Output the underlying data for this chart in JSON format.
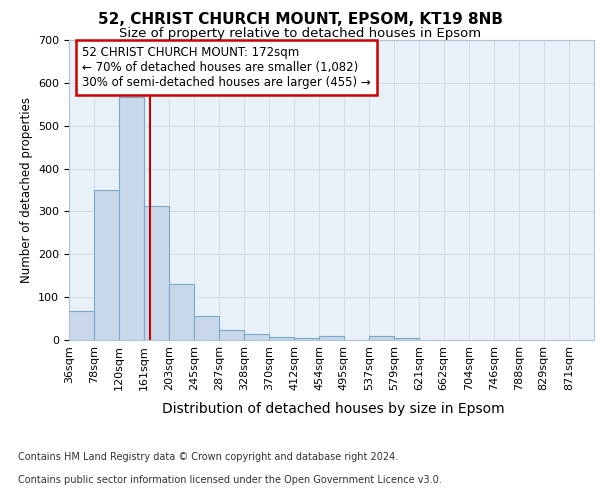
{
  "title1": "52, CHRIST CHURCH MOUNT, EPSOM, KT19 8NB",
  "title2": "Size of property relative to detached houses in Epsom",
  "xlabel": "Distribution of detached houses by size in Epsom",
  "ylabel": "Number of detached properties",
  "bin_labels": [
    "36sqm",
    "78sqm",
    "120sqm",
    "161sqm",
    "203sqm",
    "245sqm",
    "287sqm",
    "328sqm",
    "370sqm",
    "412sqm",
    "454sqm",
    "495sqm",
    "537sqm",
    "579sqm",
    "621sqm",
    "662sqm",
    "704sqm",
    "746sqm",
    "788sqm",
    "829sqm",
    "871sqm"
  ],
  "bar_heights": [
    68,
    350,
    568,
    312,
    130,
    55,
    24,
    13,
    7,
    5,
    10,
    0,
    10,
    5,
    0,
    0,
    0,
    0,
    0,
    0,
    0
  ],
  "bar_color": "#c8d8ea",
  "bar_edge_color": "#7aaac8",
  "red_line_x": 172,
  "bin_edges": [
    36,
    78,
    120,
    161,
    203,
    245,
    287,
    328,
    370,
    412,
    454,
    495,
    537,
    579,
    621,
    662,
    704,
    746,
    788,
    829,
    871,
    913
  ],
  "ylim": [
    0,
    700
  ],
  "yticks": [
    0,
    100,
    200,
    300,
    400,
    500,
    600,
    700
  ],
  "annotation_text": "52 CHRIST CHURCH MOUNT: 172sqm\n← 70% of detached houses are smaller (1,082)\n30% of semi-detached houses are larger (455) →",
  "annotation_box_color": "#ffffff",
  "annotation_box_edge": "#cc0000",
  "footer1": "Contains HM Land Registry data © Crown copyright and database right 2024.",
  "footer2": "Contains public sector information licensed under the Open Government Licence v3.0.",
  "grid_color": "#d0dde8",
  "background_color": "#e8f0f8",
  "title1_fontsize": 11,
  "title2_fontsize": 9.5,
  "xlabel_fontsize": 10,
  "ylabel_fontsize": 8.5,
  "tick_fontsize": 8,
  "annot_fontsize": 8.5,
  "footer_fontsize": 7
}
